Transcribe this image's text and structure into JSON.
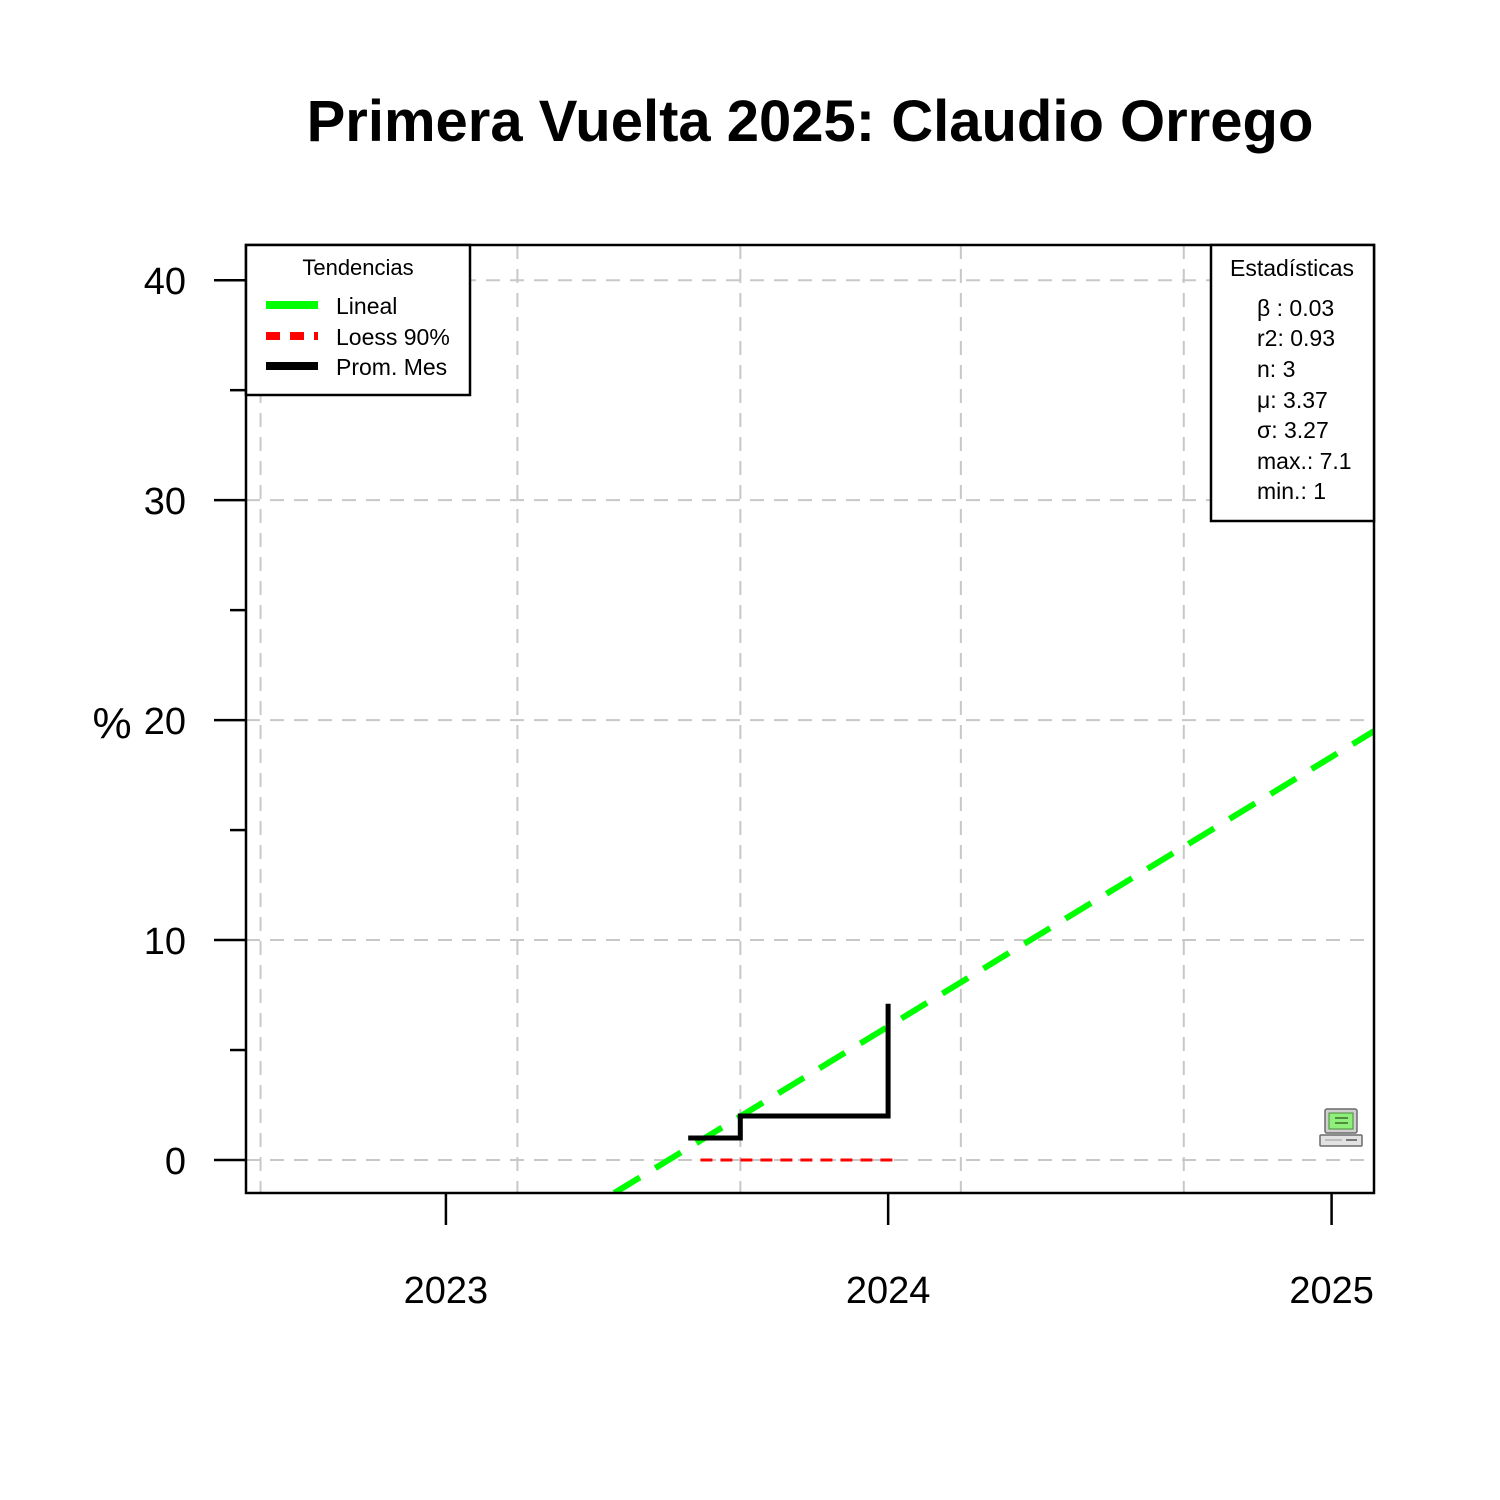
{
  "chart_data": {
    "type": "line",
    "title": "Primera Vuelta 2025: Claudio Orrego",
    "ylabel": "%",
    "xlabel": "",
    "xlim": [
      "2022-07-20",
      "2025-02-05"
    ],
    "ylim": [
      -1.5,
      41.6
    ],
    "y_ticks": [
      0,
      10,
      20,
      30,
      40
    ],
    "y_minor_ticks": [
      5,
      15,
      25,
      35
    ],
    "x_ticks": [
      {
        "label": "2023",
        "date": "2023-01-01"
      },
      {
        "label": "2024",
        "date": "2024-01-01"
      },
      {
        "label": "2025",
        "date": "2025-01-01"
      }
    ],
    "x_grid_dates": [
      "2022-08-01",
      "2023-03-01",
      "2023-09-01",
      "2024-03-01",
      "2024-09-01"
    ],
    "y_grid_values": [
      0,
      10,
      20,
      30,
      40
    ],
    "grid": true,
    "series": [
      {
        "name": "Lineal",
        "style": "dashed",
        "color": "#00ff00",
        "points": [
          {
            "x": "2023-05-20",
            "y": -1.5
          },
          {
            "x": "2025-02-05",
            "y": 19.5
          }
        ]
      },
      {
        "name": "Loess 90%",
        "style": "dotted",
        "color": "#ff0000",
        "points": [
          {
            "x": "2023-07-30",
            "y": 0
          },
          {
            "x": "2024-01-08",
            "y": 0
          }
        ]
      },
      {
        "name": "Prom. Mes",
        "style": "step",
        "color": "#000000",
        "points": [
          {
            "x": "2023-07-20",
            "y": 1.0
          },
          {
            "x": "2023-09-01",
            "y": 1.0
          },
          {
            "x": "2023-09-01",
            "y": 2.0
          },
          {
            "x": "2024-01-01",
            "y": 2.0
          },
          {
            "x": "2024-01-01",
            "y": 7.1
          }
        ]
      }
    ],
    "legend": {
      "title": "Tendencias",
      "position": "top-left",
      "entries": [
        {
          "label": "Lineal",
          "color": "#00ff00",
          "style": "solid"
        },
        {
          "label": "Loess 90%",
          "color": "#ff0000",
          "style": "dashed"
        },
        {
          "label": "Prom. Mes",
          "color": "#000000",
          "style": "solid"
        }
      ]
    },
    "stats_box": {
      "title": "Estadísticas",
      "position": "top-right",
      "lines": [
        "β : 0.03",
        "r2: 0.93",
        "n: 3",
        "μ: 3.37",
        "σ: 3.27",
        "max.: 7.1",
        "min.: 1"
      ]
    },
    "watermark_icon": "computer-icon",
    "colors": {
      "grid": "#c8c8c8",
      "axis": "#000000"
    }
  }
}
